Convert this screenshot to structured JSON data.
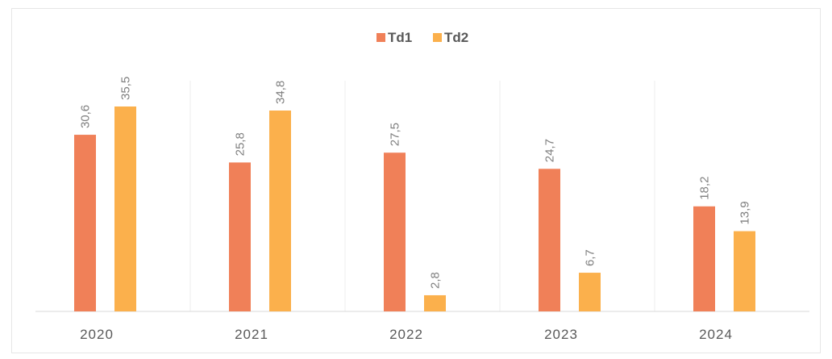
{
  "chart_data": {
    "type": "bar",
    "title": "",
    "xlabel": "",
    "ylabel": "",
    "categories": [
      "2020",
      "2021",
      "2022",
      "2023",
      "2024"
    ],
    "series": [
      {
        "name": "Td1",
        "color": "#f08058",
        "values": [
          30.6,
          25.8,
          27.5,
          24.7,
          18.2
        ],
        "labels": [
          "30,6",
          "25,8",
          "27,5",
          "24,7",
          "18,2"
        ]
      },
      {
        "name": "Td2",
        "color": "#fbb04c",
        "values": [
          35.5,
          34.8,
          2.8,
          6.7,
          13.9
        ],
        "labels": [
          "35,5",
          "34,8",
          "2,8",
          "6,7",
          "13,9"
        ]
      }
    ],
    "ylim": [
      0,
      35.5
    ],
    "legend_position": "top-center",
    "grid": "vertical category separators",
    "axis_color": "#d9d9d9",
    "tick_label_color": "#595959",
    "data_label_color": "#7f7f7f"
  }
}
